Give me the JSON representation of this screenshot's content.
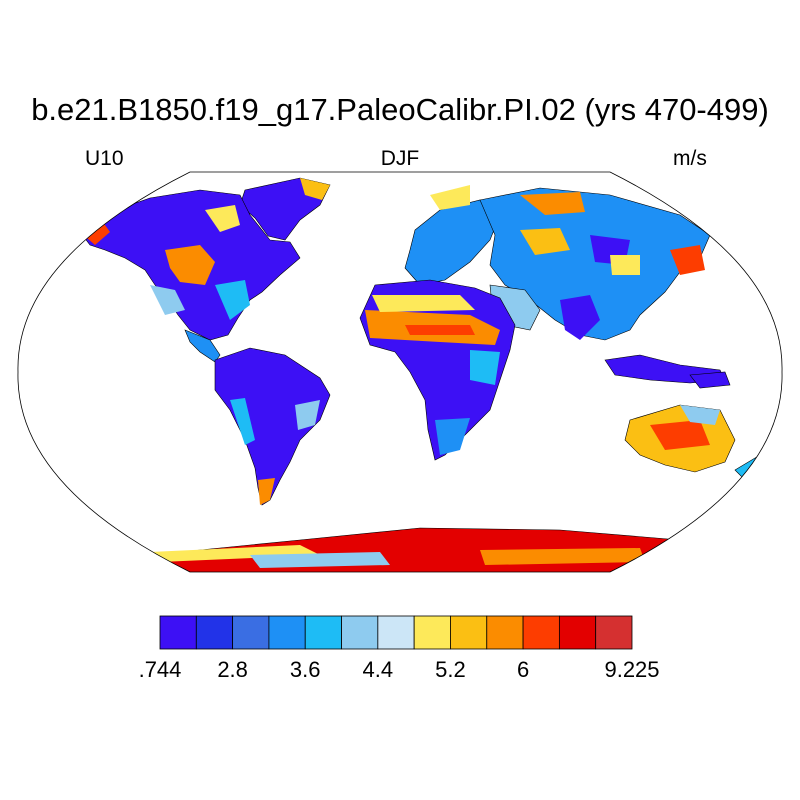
{
  "title": "b.e21.B1850.f19_g17.PaleoCalibr.PI.02 (yrs 470-499)",
  "subtitles": {
    "left": "U10",
    "center": "DJF",
    "right": "m/s"
  },
  "colorbar": {
    "colors": [
      "#3d10f5",
      "#2233e8",
      "#3a6ee3",
      "#1e90f5",
      "#1ebcf5",
      "#8ecbef",
      "#cce6f7",
      "#fde95a",
      "#fbbf13",
      "#fb8c00",
      "#fd3d00",
      "#e30000",
      "#d53030"
    ],
    "labels": [
      ".744",
      "",
      "2.8",
      "",
      "3.6",
      "",
      "4.4",
      "",
      "5.2",
      "",
      "6",
      "",
      "9.225"
    ]
  },
  "map": {
    "projection": "Robinson",
    "ocean_color": "#ffffff",
    "coastline_color": "#000000"
  }
}
